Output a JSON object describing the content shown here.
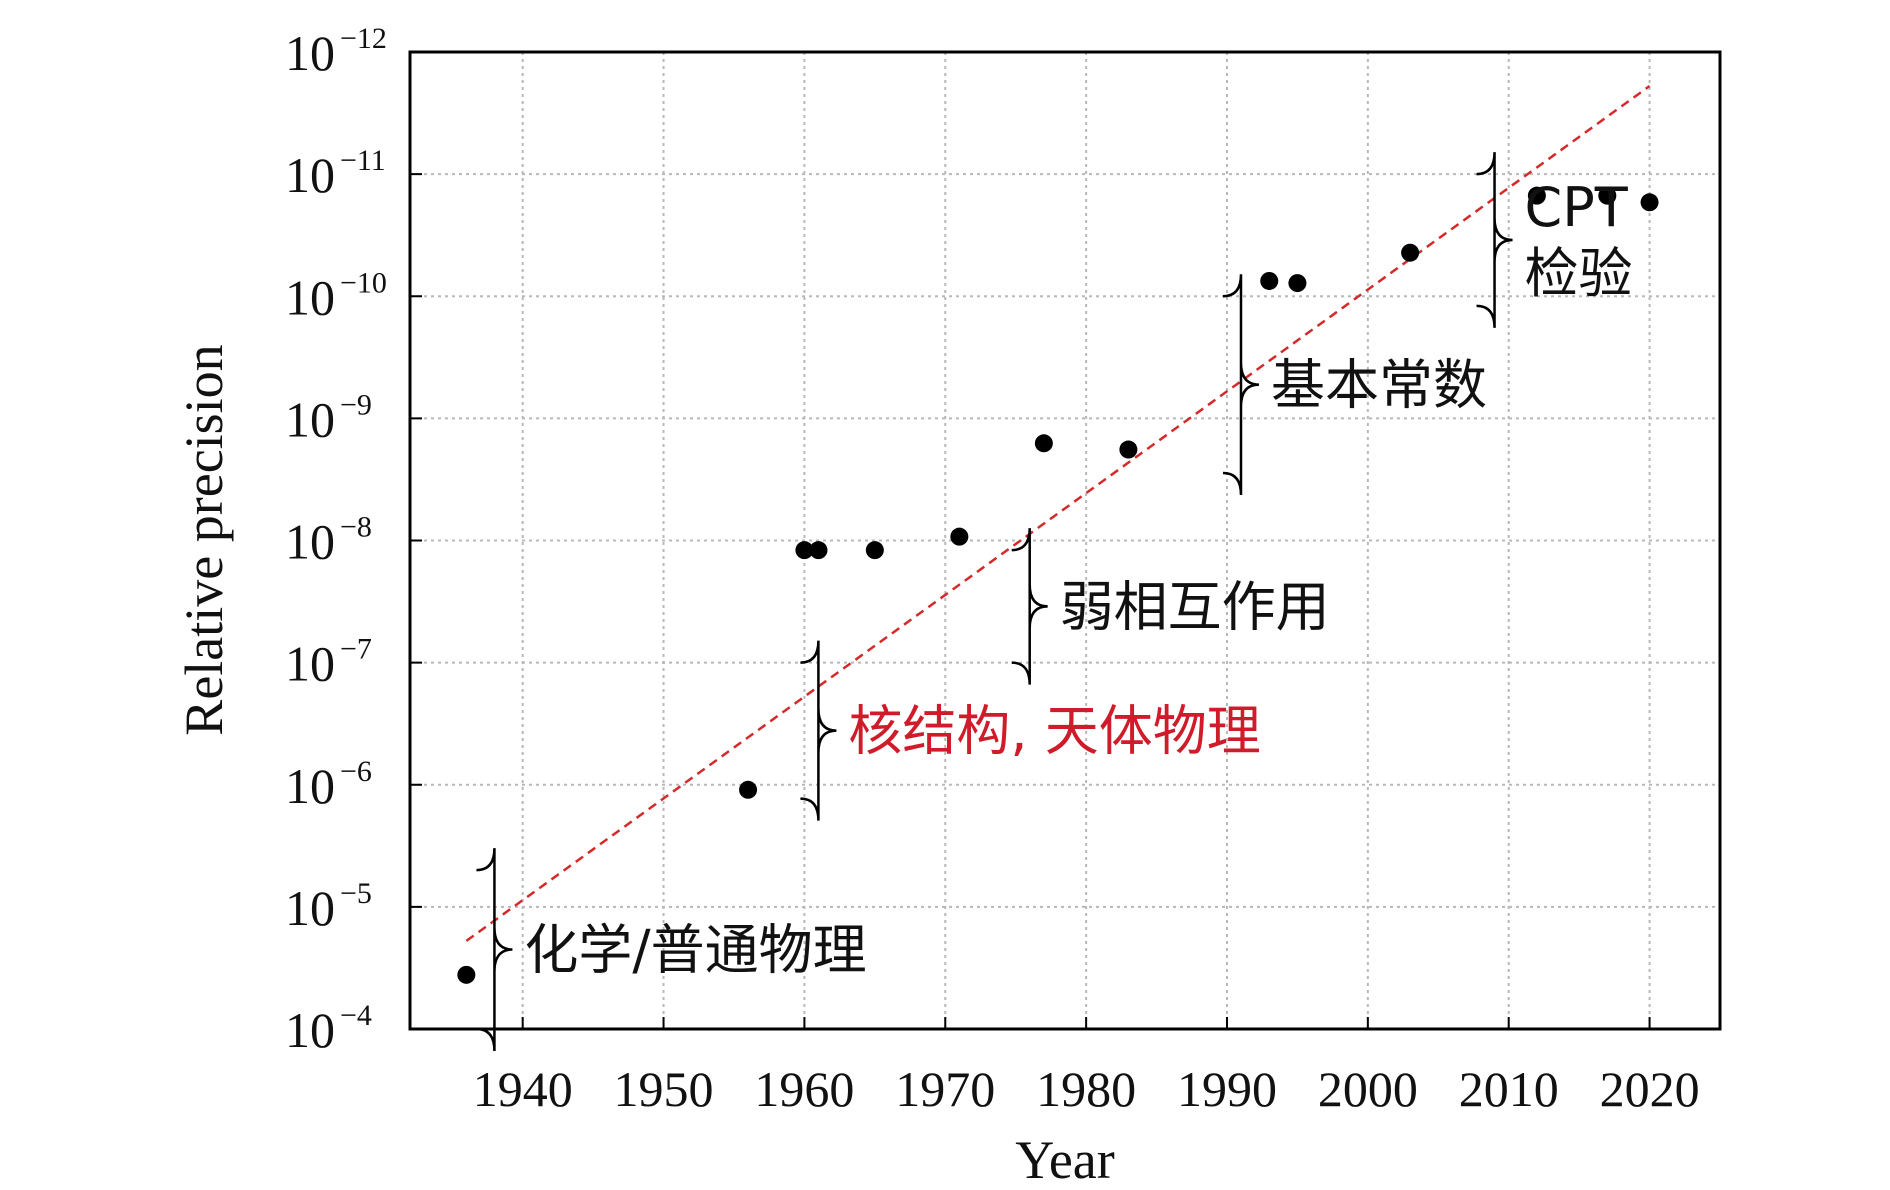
{
  "chart_data": {
    "type": "scatter",
    "title": "",
    "xlabel": "Year",
    "ylabel": "Relative precision",
    "xlim": [
      1932,
      2025
    ],
    "ylim_exponents": [
      -4,
      -12
    ],
    "y_scale": "log",
    "y_order": "decreasing",
    "x_ticks": [
      1940,
      1950,
      1960,
      1970,
      1980,
      1990,
      2000,
      2010,
      2020
    ],
    "y_ticks": [
      {
        "mantissa": "10",
        "exponent": "−4"
      },
      {
        "mantissa": "10",
        "exponent": "−5"
      },
      {
        "mantissa": "10",
        "exponent": "−6"
      },
      {
        "mantissa": "10",
        "exponent": "−7"
      },
      {
        "mantissa": "10",
        "exponent": "−8"
      },
      {
        "mantissa": "10",
        "exponent": "−9"
      },
      {
        "mantissa": "10",
        "exponent": "−10"
      },
      {
        "mantissa": "10",
        "exponent": "−11"
      },
      {
        "mantissa": "10",
        "exponent": "−12"
      }
    ],
    "grid": true,
    "points": [
      {
        "x": 1936,
        "y": 3.6e-05
      },
      {
        "x": 1956,
        "y": 1.1e-06
      },
      {
        "x": 1960,
        "y": 1.2e-08
      },
      {
        "x": 1961,
        "y": 1.2e-08
      },
      {
        "x": 1965,
        "y": 1.2e-08
      },
      {
        "x": 1971,
        "y": 9.3e-09
      },
      {
        "x": 1977,
        "y": 1.6e-09
      },
      {
        "x": 1983,
        "y": 1.8e-09
      },
      {
        "x": 1993,
        "y": 7.5e-11
      },
      {
        "x": 1995,
        "y": 7.8e-11
      },
      {
        "x": 2003,
        "y": 4.4e-11
      },
      {
        "x": 2012,
        "y": 1.5e-11
      },
      {
        "x": 2017,
        "y": 1.5e-11
      },
      {
        "x": 2020,
        "y": 1.7e-11
      }
    ],
    "trend_line": {
      "x": [
        1936,
        2020
      ],
      "y": [
        1.9e-05,
        1.9e-12
      ],
      "color": "#d42a2a",
      "style": "dashed"
    },
    "annotations": [
      {
        "text": "化学/普通物理",
        "x_range": [
          1937,
          1940
        ],
        "y_range": [
          0.0001,
          5e-06
        ],
        "color": "#111111"
      },
      {
        "text": "核结构, 天体物理",
        "x_range": [
          1960,
          1962
        ],
        "y_range": [
          1.3e-06,
          1e-07
        ],
        "color": "#d01c2a"
      },
      {
        "text": "弱相互作用",
        "x_range": [
          1975,
          1977
        ],
        "y_range": [
          1e-07,
          1.2e-08
        ],
        "color": "#111111"
      },
      {
        "text": "基本常数",
        "x_range": [
          1990,
          1992
        ],
        "y_range": [
          2.8e-09,
          1e-10
        ],
        "color": "#111111"
      },
      {
        "text": "CPT",
        "x_range": [
          2008,
          2010
        ],
        "y_range": [
          1.2e-10,
          1e-11
        ],
        "color": "#111111"
      },
      {
        "text": "检验",
        "x_range": [
          2008,
          2010
        ],
        "y_range": [
          1.2e-10,
          1e-11
        ],
        "color": "#111111"
      }
    ]
  }
}
